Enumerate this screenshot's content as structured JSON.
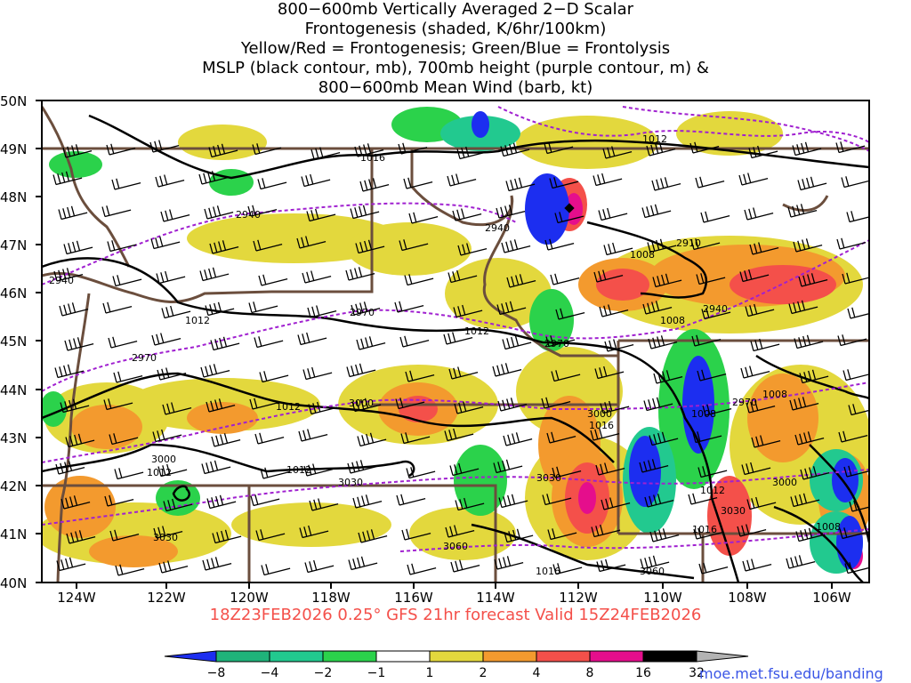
{
  "title_lines": [
    "800−600mb Vertically Averaged 2−D Scalar",
    "Frontogenesis (shaded, K/6hr/100km)",
    "Yellow/Red = Frontogenesis;  Green/Blue = Frontolysis",
    "MSLP (black contour, mb), 700mb height (purple contour, m) &",
    "800−600mb Mean Wind (barb, kt)"
  ],
  "subtitle": "18Z23FEB2026 0.25° GFS 21hr forecast Valid 15Z24FEB2026",
  "credit": "moe.met.fsu.edu/banding",
  "map": {
    "lon_labels": [
      "124W",
      "122W",
      "120W",
      "118W",
      "116W",
      "114W",
      "112W",
      "110W",
      "108W",
      "106W"
    ],
    "lat_labels": [
      "50N",
      "49N",
      "48N",
      "47N",
      "46N",
      "45N",
      "44N",
      "43N",
      "42N",
      "41N",
      "40N"
    ],
    "mslp_labels": [
      "1016",
      "1012",
      "1012",
      "1012",
      "1012",
      "1012",
      "1008",
      "1008",
      "1008",
      "1008",
      "1008",
      "1016",
      "1016",
      "1016",
      "1012",
      "1012"
    ],
    "height_labels": [
      "2940",
      "2940",
      "2940",
      "2910",
      "2940",
      "2970",
      "2970",
      "2970",
      "2970",
      "3000",
      "3000",
      "3000",
      "3000",
      "3030",
      "3030",
      "3030",
      "3030",
      "3060",
      "3060"
    ]
  },
  "colorbar": {
    "labels": [
      "−8",
      "−4",
      "−2",
      "−1",
      "1",
      "2",
      "4",
      "8",
      "16",
      "32"
    ],
    "colors": [
      "#1c2ef0",
      "#1fb37a",
      "#22c98f",
      "#2bd24b",
      "#ffffff",
      "#e3d83d",
      "#f39a2e",
      "#f4504a",
      "#e50e8c",
      "#000000",
      "#b3b3b3"
    ]
  }
}
